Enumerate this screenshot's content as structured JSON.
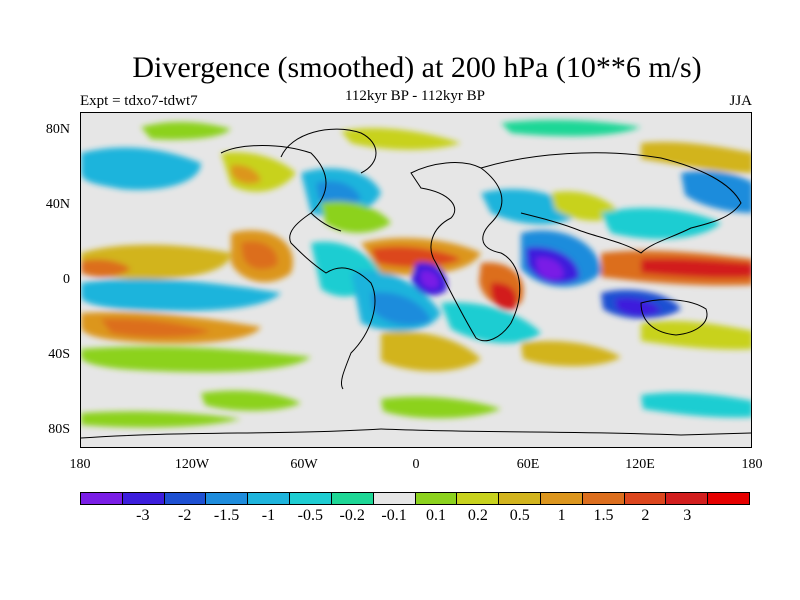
{
  "title": "Divergence (smoothed) at 200 hPa (10**6 m/s)",
  "subtitle": "112kyr BP - 112kyr BP",
  "experiment": "Expt = tdxo7-tdwt7",
  "season": "JJA",
  "y_axis_labels": [
    "80N",
    "40N",
    "0",
    "40S",
    "80S"
  ],
  "x_axis_labels": [
    "180",
    "120W",
    "60W",
    "0",
    "60E",
    "120E",
    "180"
  ],
  "colorbar": {
    "colors": [
      "#7a1ee6",
      "#3c1edc",
      "#1e50d2",
      "#1e8cdc",
      "#1eb4dc",
      "#1ecdd2",
      "#1ed796",
      "#e6e6e6",
      "#8cd21e",
      "#c8d21e",
      "#d2b41e",
      "#dc961e",
      "#dc6e1e",
      "#dc461e",
      "#d21e1e",
      "#e60000"
    ],
    "labels": [
      "-3",
      "-2",
      "-1.5",
      "-1",
      "-0.5",
      "-0.2",
      "-0.1",
      "0.1",
      "0.2",
      "0.5",
      "1",
      "1.5",
      "2",
      "3"
    ]
  }
}
